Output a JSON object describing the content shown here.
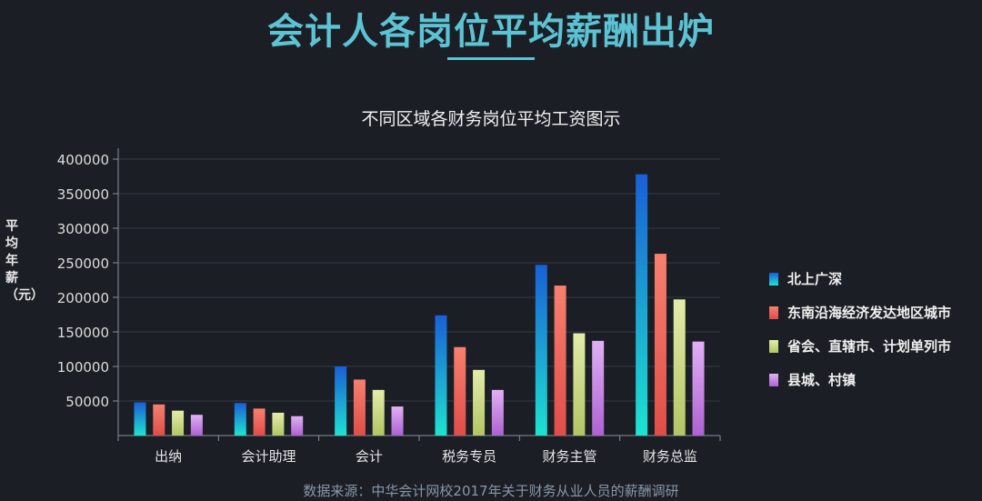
{
  "header": {
    "title": "会计人各岗位平均薪酬出炉"
  },
  "source_note": "数据来源：中华会计网校2017年关于财务从业人员的薪酬调研",
  "chart_data": {
    "type": "bar",
    "title": "不同区域各财务岗位平均工资图示",
    "xlabel": "",
    "ylabel": "平均年薪（元）",
    "ylim": [
      0,
      400000
    ],
    "yticks": [
      "50000",
      "100000",
      "150000",
      "200000",
      "250000",
      "300000",
      "350000",
      "400000"
    ],
    "grid": true,
    "legend_position": "right",
    "categories": [
      "出纳",
      "会计助理",
      "会计",
      "税务专员",
      "财务主管",
      "财务总监"
    ],
    "series": [
      {
        "name": "北上广深",
        "values": [
          48000,
          47000,
          100000,
          174000,
          247000,
          378000
        ],
        "colors": [
          "#1a5fd6",
          "#1de3d0"
        ]
      },
      {
        "name": "东南沿海经济发达地区城市",
        "values": [
          45000,
          39000,
          81000,
          128000,
          217000,
          263000
        ],
        "colors": [
          "#f68070",
          "#e04d48"
        ]
      },
      {
        "name": "省会、直辖市、计划单列市",
        "values": [
          36000,
          33000,
          66000,
          95000,
          148000,
          197000
        ],
        "colors": [
          "#e4ecaa",
          "#b2c564"
        ]
      },
      {
        "name": "县城、村镇",
        "values": [
          30000,
          28000,
          42000,
          66000,
          137000,
          136000
        ],
        "colors": [
          "#e0b0f4",
          "#ad62d2"
        ]
      }
    ]
  }
}
